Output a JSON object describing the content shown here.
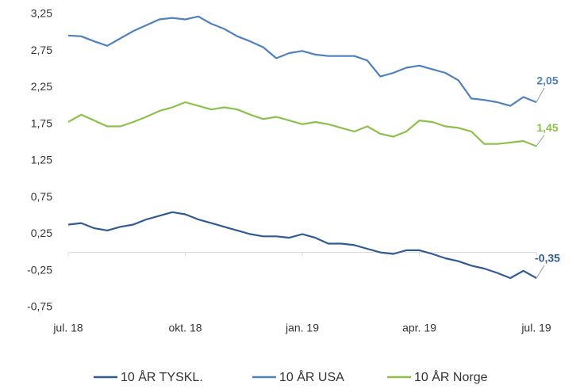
{
  "chart_data": {
    "type": "line",
    "categories": [
      "jul. 18",
      null,
      null,
      null,
      null,
      null,
      null,
      null,
      null,
      "okt. 18",
      null,
      null,
      null,
      null,
      null,
      null,
      null,
      null,
      "jan. 19",
      null,
      null,
      null,
      null,
      null,
      null,
      null,
      null,
      "apr. 19",
      null,
      null,
      null,
      null,
      null,
      null,
      null,
      null,
      "jul. 19"
    ],
    "series": [
      {
        "name": "10 ÅR TYSKL.",
        "color": "#2f5b92",
        "values": [
          0.38,
          0.4,
          0.33,
          0.3,
          0.35,
          0.38,
          0.45,
          0.5,
          0.55,
          0.52,
          0.45,
          0.4,
          0.35,
          0.3,
          0.25,
          0.22,
          0.22,
          0.2,
          0.25,
          0.2,
          0.12,
          0.12,
          0.1,
          0.05,
          0.0,
          -0.02,
          0.03,
          0.03,
          -0.02,
          -0.08,
          -0.12,
          -0.18,
          -0.22,
          -0.28,
          -0.35,
          -0.25,
          -0.35
        ],
        "value_labels": [
          null,
          null,
          null,
          null,
          null,
          null,
          null,
          null,
          null,
          null,
          null,
          null,
          null,
          null,
          null,
          null,
          null,
          null,
          null,
          null,
          null,
          null,
          null,
          null,
          null,
          null,
          null,
          null,
          null,
          null,
          null,
          null,
          null,
          null,
          null,
          null,
          "-0,35"
        ]
      },
      {
        "name": "10 ÅR USA",
        "color": "#4f81bd",
        "values": [
          2.96,
          2.95,
          2.88,
          2.82,
          2.92,
          3.02,
          3.1,
          3.18,
          3.2,
          3.18,
          3.22,
          3.12,
          3.05,
          2.95,
          2.88,
          2.8,
          2.65,
          2.72,
          2.75,
          2.7,
          2.68,
          2.68,
          2.68,
          2.62,
          2.4,
          2.45,
          2.52,
          2.55,
          2.5,
          2.45,
          2.35,
          2.1,
          2.08,
          2.05,
          2.0,
          2.12,
          2.05
        ],
        "value_labels": [
          null,
          null,
          null,
          null,
          null,
          null,
          null,
          null,
          null,
          null,
          null,
          null,
          null,
          null,
          null,
          null,
          null,
          null,
          null,
          null,
          null,
          null,
          null,
          null,
          null,
          null,
          null,
          null,
          null,
          null,
          null,
          null,
          null,
          null,
          null,
          null,
          "2,05"
        ]
      },
      {
        "name": "10 ÅR Norge",
        "color": "#8dc04b",
        "values": [
          1.78,
          1.88,
          1.8,
          1.72,
          1.72,
          1.78,
          1.85,
          1.93,
          1.98,
          2.05,
          2.0,
          1.95,
          1.98,
          1.95,
          1.88,
          1.82,
          1.85,
          1.8,
          1.75,
          1.78,
          1.75,
          1.7,
          1.65,
          1.72,
          1.62,
          1.58,
          1.65,
          1.8,
          1.78,
          1.72,
          1.7,
          1.65,
          1.48,
          1.48,
          1.5,
          1.52,
          1.45
        ],
        "value_labels": [
          null,
          null,
          null,
          null,
          null,
          null,
          null,
          null,
          null,
          null,
          null,
          null,
          null,
          null,
          null,
          null,
          null,
          null,
          null,
          null,
          null,
          null,
          null,
          null,
          null,
          null,
          null,
          null,
          null,
          null,
          null,
          null,
          null,
          null,
          null,
          null,
          "1,45"
        ]
      }
    ],
    "ylim": [
      -0.75,
      3.25
    ],
    "yticks": [
      {
        "value": 3.25,
        "label": "3,25"
      },
      {
        "value": 2.75,
        "label": "2,75"
      },
      {
        "value": 2.25,
        "label": "2,25"
      },
      {
        "value": 1.75,
        "label": "1,75"
      },
      {
        "value": 1.25,
        "label": "1,25"
      },
      {
        "value": 0.75,
        "label": "0,75"
      },
      {
        "value": 0.25,
        "label": "0,25"
      },
      {
        "value": -0.25,
        "label": "-0,25"
      },
      {
        "value": -0.75,
        "label": "-0,75"
      }
    ],
    "legend": "bottom"
  }
}
